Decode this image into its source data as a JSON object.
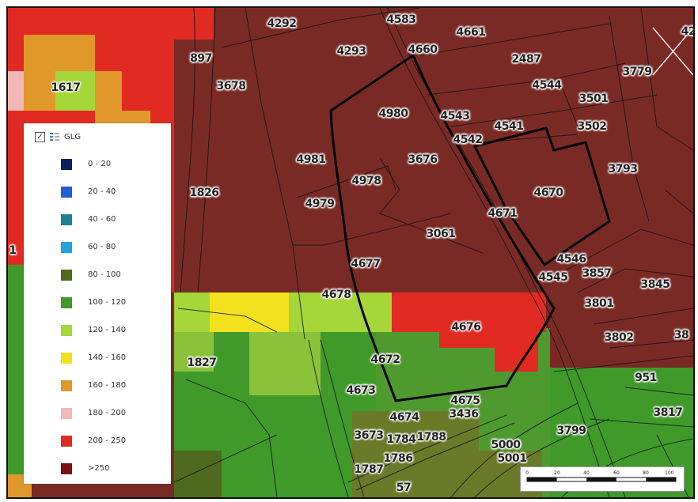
{
  "legend": {
    "checked": true,
    "icon": "layer-list-icon",
    "title": "GLG",
    "items": [
      {
        "label": "0 - 20",
        "color": "#0a1f5c"
      },
      {
        "label": "20 - 40",
        "color": "#1e5fd6"
      },
      {
        "label": "40 - 60",
        "color": "#1f7f99"
      },
      {
        "label": "60 - 80",
        "color": "#22a3d9"
      },
      {
        "label": "80 - 100",
        "color": "#4e6a1e"
      },
      {
        "label": "100 - 120",
        "color": "#3f9a2a"
      },
      {
        "label": "120 - 140",
        "color": "#a5d63a"
      },
      {
        "label": "140 - 160",
        "color": "#f2e21d"
      },
      {
        "label": "160 - 180",
        "color": "#e0982b"
      },
      {
        "label": "180 - 200",
        "color": "#f2b8b8"
      },
      {
        "label": "200 - 250",
        "color": "#e12b22"
      },
      {
        "label": ">250",
        "color": "#7a1414"
      }
    ]
  },
  "parcels": [
    "4292",
    "4583",
    "4661",
    "4293",
    "4660",
    "897",
    "3678",
    "2487",
    "3779",
    "4544",
    "3501",
    "4980",
    "4543",
    "4541",
    "3502",
    "4542",
    "1617",
    "3676",
    "4981",
    "3793",
    "4978",
    "4670",
    "1826",
    "4979",
    "4671",
    "3061",
    "4677",
    "4546",
    "4545",
    "3857",
    "3845",
    "4678",
    "3801",
    "4676",
    "3802",
    "38",
    "4672",
    "1827",
    "951",
    "4673",
    "4675",
    "3436",
    "3817",
    "4674",
    "3673",
    "1784",
    "1788",
    "5000",
    "3799",
    "1786",
    "5001",
    "1787",
    "57",
    "1",
    "42"
  ],
  "scalebar": {
    "ticks": [
      "0",
      "20",
      "40",
      "60",
      "80",
      "100 m"
    ]
  }
}
